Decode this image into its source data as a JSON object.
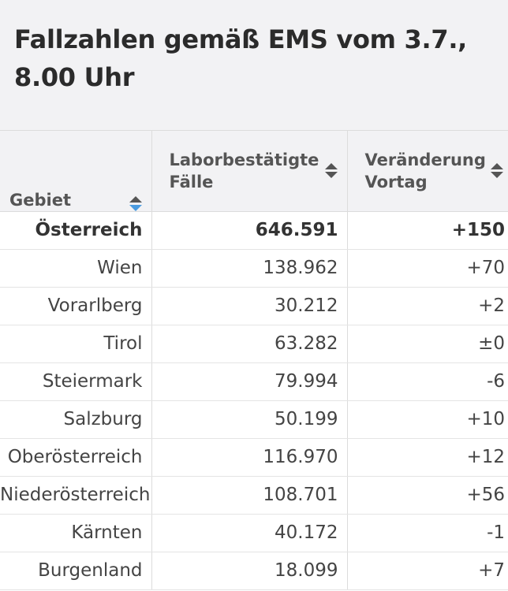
{
  "title": "Fallzahlen gemäß EMS vom 3.7., 8.00 Uhr",
  "table": {
    "headers": [
      {
        "label": "Gebiet",
        "sort": "active"
      },
      {
        "label": "Laborbestätigte Fälle",
        "sort": "none"
      },
      {
        "label": "Veränderung Vortag",
        "sort": "none"
      }
    ],
    "rows": [
      {
        "gebiet": "Österreich",
        "faelle": "646.591",
        "veraenderung": "+150",
        "total": true
      },
      {
        "gebiet": "Wien",
        "faelle": "138.962",
        "veraenderung": "+70"
      },
      {
        "gebiet": "Vorarlberg",
        "faelle": "30.212",
        "veraenderung": "+2"
      },
      {
        "gebiet": "Tirol",
        "faelle": "63.282",
        "veraenderung": "±0"
      },
      {
        "gebiet": "Steiermark",
        "faelle": "79.994",
        "veraenderung": "-6"
      },
      {
        "gebiet": "Salzburg",
        "faelle": "50.199",
        "veraenderung": "+10"
      },
      {
        "gebiet": "Oberösterreich",
        "faelle": "116.970",
        "veraenderung": "+12"
      },
      {
        "gebiet": "Niederösterreich",
        "faelle": "108.701",
        "veraenderung": "+56"
      },
      {
        "gebiet": "Kärnten",
        "faelle": "40.172",
        "veraenderung": "-1"
      },
      {
        "gebiet": "Burgenland",
        "faelle": "18.099",
        "veraenderung": "+7"
      }
    ]
  },
  "colors": {
    "header_bg": "#f2f2f4",
    "sort_active": "#4a9be0",
    "grid": "#dcdcdc"
  },
  "icons": [
    "sort-icon"
  ]
}
